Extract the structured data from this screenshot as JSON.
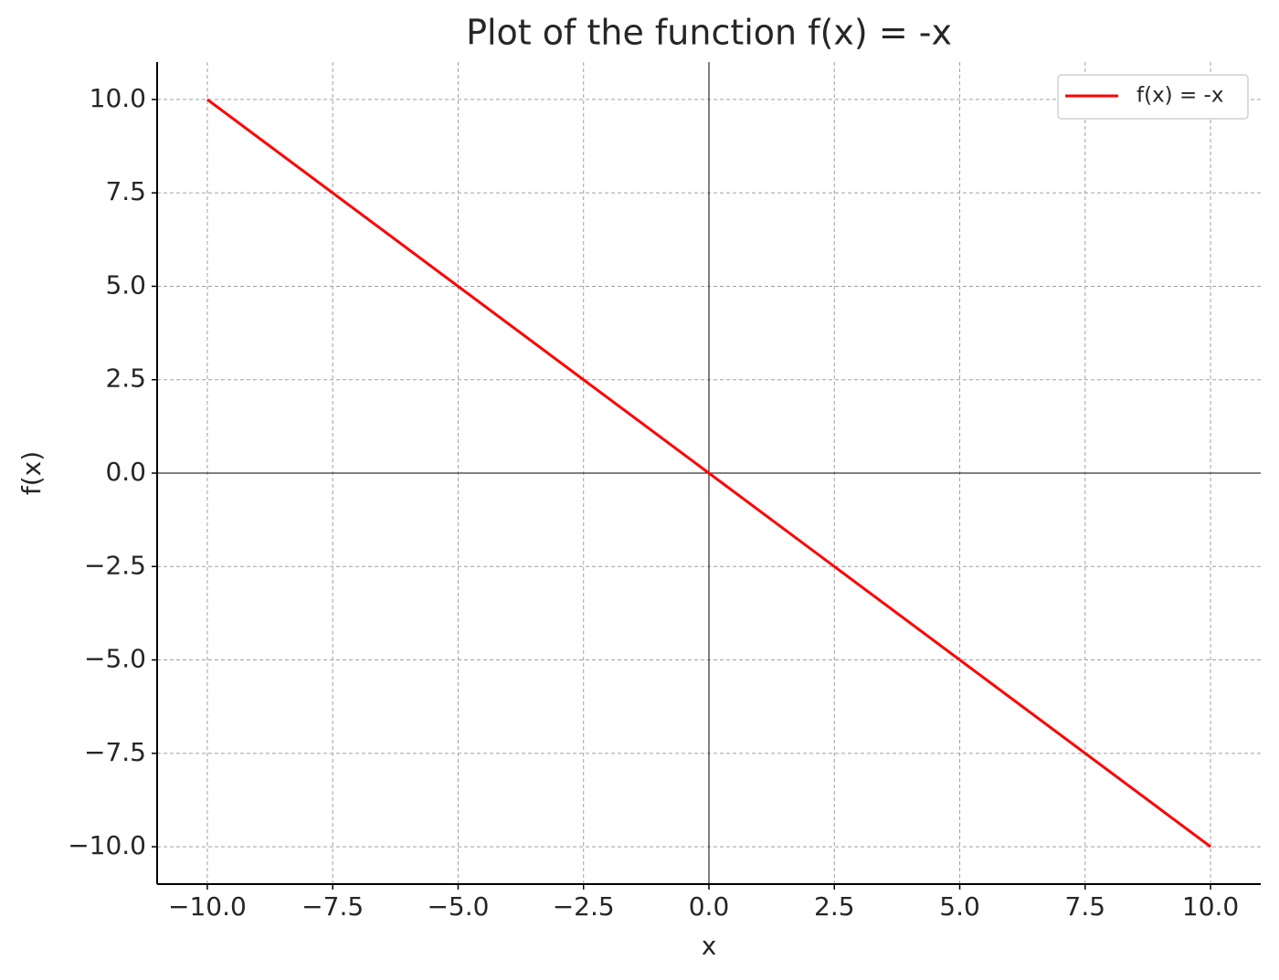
{
  "chart_data": {
    "type": "line",
    "title": "Plot of the function f(x) = -x",
    "x_label": "x",
    "y_label": "f(x)",
    "x": [
      -10,
      10
    ],
    "series": [
      {
        "name": "f(x) = -x",
        "color": "#ff0000",
        "values": [
          10,
          -10
        ]
      }
    ],
    "xlim": [
      -11,
      11
    ],
    "xticks": [
      {
        "value": -10,
        "label": "−10.0"
      },
      {
        "value": -7.5,
        "label": "−7.5"
      },
      {
        "value": -5,
        "label": "−5.0"
      },
      {
        "value": -2.5,
        "label": "−2.5"
      },
      {
        "value": 0,
        "label": "0.0"
      },
      2.5,
      {
        "value": 5,
        "label": "5.0"
      },
      7.5,
      {
        "value": 10,
        "label": "10.0"
      }
    ],
    "ylim": [
      -11,
      11
    ],
    "yticks": [
      {
        "value": -10,
        "label": "−10.0"
      },
      {
        "value": -7.5,
        "label": "−7.5"
      },
      {
        "value": -5,
        "label": "−5.0"
      },
      {
        "value": -2.5,
        "label": "−2.5"
      },
      {
        "value": 0,
        "label": "0.0"
      },
      2.5,
      {
        "value": 5,
        "label": "5.0"
      },
      7.5,
      {
        "value": 10,
        "label": "10.0"
      }
    ],
    "grid": true,
    "zero_lines": true,
    "legend": "upper right"
  }
}
